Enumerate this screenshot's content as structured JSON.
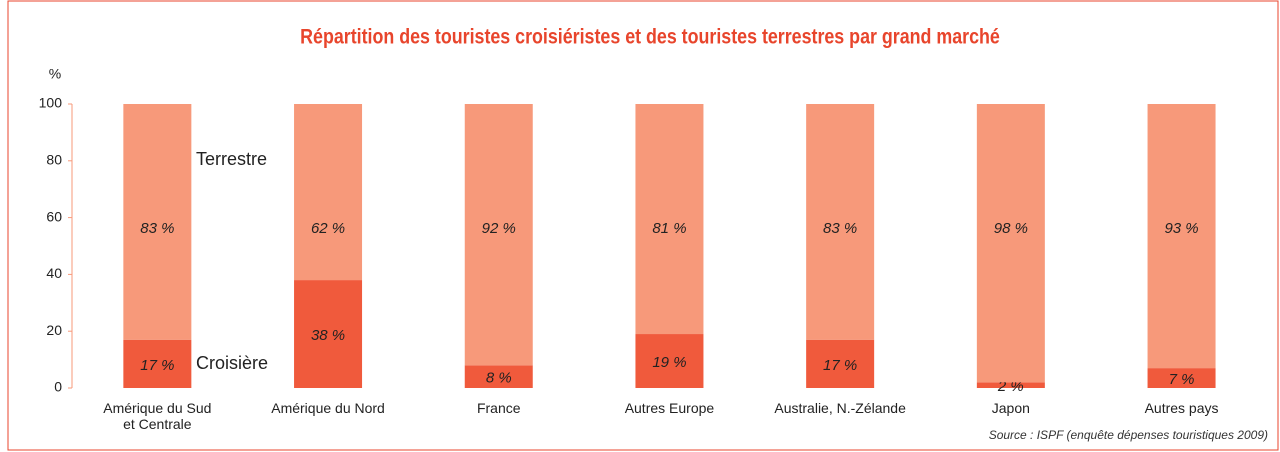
{
  "chart_data": {
    "type": "stacked_bar",
    "title": "Répartition des touristes croisiéristes et des touristes terrestres par grand marché",
    "y_label": "%",
    "categories": [
      "Amérique du Sud\net Centrale",
      "Amérique du Nord",
      "France",
      "Autres Europe",
      "Australie, N.-Zélande",
      "Japon",
      "Autres pays"
    ],
    "series": [
      {
        "name": "Croisière",
        "color": "#f05a3c",
        "values": [
          17,
          38,
          8,
          19,
          17,
          2,
          7
        ],
        "value_labels": [
          "17 %",
          "38 %",
          "8 %",
          "19 %",
          "17 %",
          "2 %",
          "7 %"
        ]
      },
      {
        "name": "Terrestre",
        "color": "#f7997a",
        "values": [
          83,
          62,
          92,
          81,
          83,
          98,
          93
        ],
        "value_labels": [
          "83 %",
          "62 %",
          "92 %",
          "81 %",
          "83 %",
          "98 %",
          "93 %"
        ]
      }
    ],
    "ylim": [
      0,
      100
    ],
    "yticks": [
      0,
      20,
      40,
      60,
      80,
      100
    ],
    "source": "Source : ISPF (enquête dépenses touristiques 2009)"
  }
}
